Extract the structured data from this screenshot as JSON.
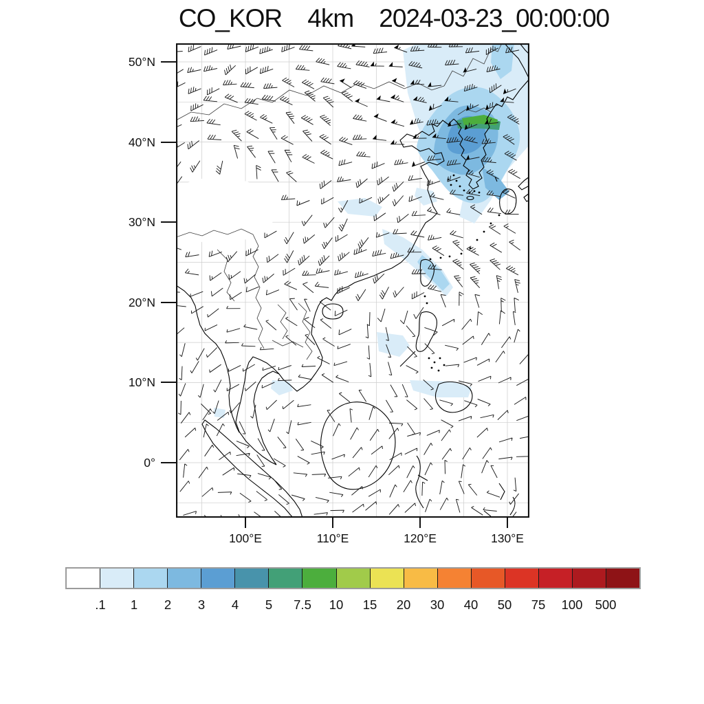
{
  "title": {
    "text": "CO_KOR    4km    2024-03-23_00:00:00"
  },
  "map": {
    "lat_tick_labels": [
      "50°N",
      "40°N",
      "30°N",
      "20°N",
      "10°N",
      "0°"
    ],
    "lon_tick_labels": [
      "100°E",
      "110°E",
      "120°E",
      "130°E"
    ]
  },
  "colorbar": {
    "tick_labels": [
      ".1",
      "1",
      "2",
      "3",
      "4",
      "5",
      "7.5",
      "10",
      "15",
      "20",
      "30",
      "40",
      "50",
      "75",
      "100",
      "500"
    ],
    "cell_colors": [
      "#ffffff",
      "#d9ecf8",
      "#abd7f0",
      "#7db9e0",
      "#5b9ed3",
      "#4893ab",
      "#42a077",
      "#4cae3d",
      "#a1cb4a",
      "#ebe254",
      "#f8bb45",
      "#f58233",
      "#e75827",
      "#dc3425",
      "#c62026",
      "#ad1a1f",
      "#8e1316"
    ]
  },
  "chart_data": {
    "type": "heatmap",
    "title": "CO_KOR 4km 2024-03-23_00:00:00",
    "variable": "CO",
    "domain_label": "CO_KOR",
    "grid_resolution": "4km",
    "valid_time": "2024-03-23_00:00:00",
    "projection_extent": "approx 92-132.5 deg E, 7 deg S - 52 deg N",
    "x_tick_labels": [
      "100°E",
      "110°E",
      "120°E",
      "130°E"
    ],
    "y_tick_labels": [
      "50°N",
      "40°N",
      "30°N",
      "20°N",
      "10°N",
      "0°"
    ],
    "grid": true,
    "legend_position": "bottom",
    "colorbar_boundary_values": [
      0.1,
      1,
      2,
      3,
      4,
      5,
      7.5,
      10,
      15,
      20,
      30,
      40,
      50,
      75,
      100,
      500
    ],
    "colorbar_colors": [
      "#ffffff",
      "#d9ecf8",
      "#abd7f0",
      "#7db9e0",
      "#5b9ed3",
      "#4893ab",
      "#42a077",
      "#4cae3d",
      "#a1cb4a",
      "#ebe254",
      "#f8bb45",
      "#f58233",
      "#e75827",
      "#dc3425",
      "#c62026",
      "#ad1a1f",
      "#8e1316"
    ],
    "overlays": [
      "wind barbs (black)",
      "coastlines and national borders (black)",
      "5-degree graticule (light gray)"
    ],
    "shaded_features": [
      {
        "region": "northeast China near Korea border (~123-129E, 40-46N)",
        "value_band": "5-15",
        "description": "main CO plume; green core near 126E 42.5N surrounded by blue shading 1-5"
      },
      {
        "region": "upper right near top edge (~125-131E, 48-52N)",
        "value_band": "1-3"
      },
      {
        "region": "central-east China and East China Sea (~112-122E, 26-33N)",
        "value_band": "0.1-2",
        "description": "scattered light blue streaks"
      },
      {
        "region": "Luzon Strait and Philippine Sea (~115-126E, 8-21N)",
        "value_band": "0.1-1"
      },
      {
        "region": "Indochina scattered patches",
        "value_band": "0.1-1"
      },
      {
        "region": "Tibetan plateau (~93-103E, 28-34N)",
        "value_band": "no data (white, wind barbs masked)"
      }
    ]
  }
}
